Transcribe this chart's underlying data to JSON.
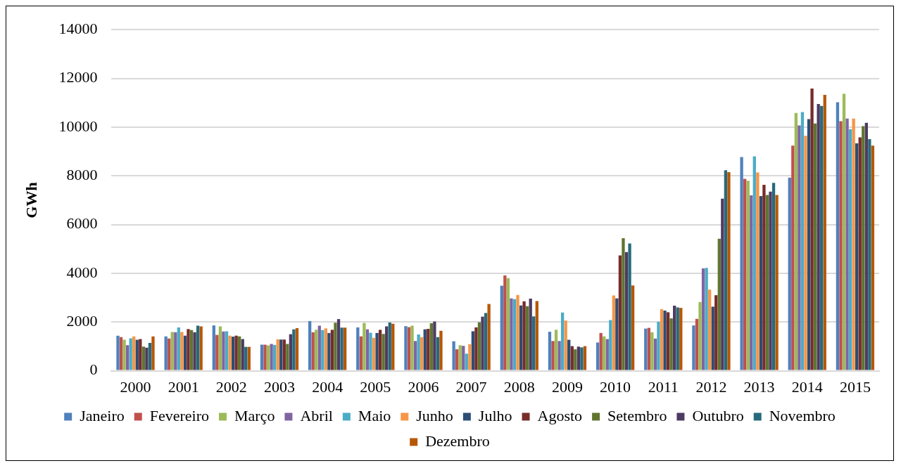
{
  "chart_data": {
    "type": "bar",
    "ylabel": "GWh",
    "categories": [
      "2000",
      "2001",
      "2002",
      "2003",
      "2004",
      "2005",
      "2006",
      "2007",
      "2008",
      "2009",
      "2010",
      "2011",
      "2012",
      "2013",
      "2014",
      "2015"
    ],
    "ylim": [
      0,
      14000
    ],
    "yticks": [
      0,
      2000,
      4000,
      6000,
      8000,
      10000,
      12000,
      14000
    ],
    "grid": "y",
    "legend": "bottom",
    "series": [
      {
        "name": "Janeiro",
        "color": "#4f81bd",
        "values": [
          1440,
          1410,
          1860,
          1070,
          2040,
          1780,
          1830,
          1210,
          3490,
          1600,
          1160,
          1730,
          1860,
          8770,
          7930,
          11020
        ]
      },
      {
        "name": "Fevereiro",
        "color": "#c0504d",
        "values": [
          1380,
          1320,
          1470,
          1070,
          1580,
          1410,
          1790,
          880,
          3910,
          1220,
          1550,
          1760,
          2130,
          7880,
          9240,
          10240
        ]
      },
      {
        "name": "Março",
        "color": "#9bbb59",
        "values": [
          1270,
          1590,
          1820,
          1040,
          1680,
          1960,
          1850,
          1050,
          3800,
          1680,
          1410,
          1580,
          2820,
          7800,
          10580,
          11370
        ]
      },
      {
        "name": "Abril",
        "color": "#8064a2",
        "values": [
          1050,
          1580,
          1610,
          1100,
          1850,
          1700,
          1220,
          1020,
          2970,
          1220,
          1300,
          1320,
          4200,
          7200,
          10070,
          10350
        ]
      },
      {
        "name": "Maio",
        "color": "#4bacc6",
        "values": [
          1330,
          1780,
          1620,
          1060,
          1670,
          1560,
          1490,
          700,
          2940,
          2390,
          2080,
          2010,
          4220,
          8800,
          10620,
          9910
        ]
      },
      {
        "name": "Junho",
        "color": "#f79646",
        "values": [
          1410,
          1590,
          1440,
          1290,
          1740,
          1350,
          1380,
          1090,
          3110,
          2060,
          3090,
          2530,
          3330,
          8140,
          9640,
          10350
        ]
      },
      {
        "name": "Julho",
        "color": "#2c4d75",
        "values": [
          1270,
          1440,
          1400,
          1280,
          1550,
          1550,
          1700,
          1620,
          2680,
          1270,
          2970,
          2470,
          2630,
          7170,
          10330,
          9330
        ]
      },
      {
        "name": "Agosto",
        "color": "#772c2a",
        "values": [
          1300,
          1710,
          1440,
          1280,
          1680,
          1680,
          1720,
          1780,
          2850,
          1010,
          4730,
          2400,
          3100,
          7630,
          11580,
          9580
        ]
      },
      {
        "name": "Setembro",
        "color": "#5f7530",
        "values": [
          990,
          1670,
          1410,
          1100,
          1970,
          1510,
          1950,
          1990,
          2650,
          880,
          5440,
          2150,
          5420,
          7210,
          10150,
          10040
        ]
      },
      {
        "name": "Outubro",
        "color": "#4d3b62",
        "values": [
          950,
          1580,
          1300,
          1500,
          2120,
          1820,
          2020,
          2220,
          2960,
          990,
          4870,
          2670,
          7060,
          7350,
          10950,
          10180
        ]
      },
      {
        "name": "Novembro",
        "color": "#276a7c",
        "values": [
          1140,
          1850,
          980,
          1700,
          1770,
          1980,
          1380,
          2370,
          2230,
          960,
          5220,
          2600,
          8230,
          7710,
          10870,
          9510
        ]
      },
      {
        "name": "Dezembro",
        "color": "#b65708",
        "values": [
          1410,
          1820,
          980,
          1750,
          1770,
          1930,
          1640,
          2740,
          2860,
          1010,
          3500,
          2580,
          8150,
          7210,
          11320,
          9240
        ]
      }
    ]
  }
}
